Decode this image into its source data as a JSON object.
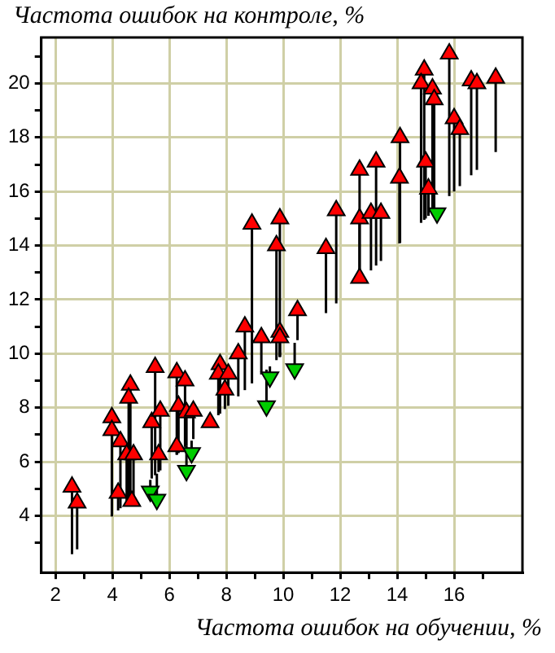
{
  "chart_data": {
    "type": "scatter",
    "xlabel": "Частота ошибок на обучении, %",
    "ylabel": "Частота ошибок на контроле, %",
    "xlim": [
      1.5,
      18.4
    ],
    "ylim": [
      1.9,
      21.7
    ],
    "xticks": [
      2,
      {
        "value": 3,
        "label": null
      },
      4,
      {
        "value": 5,
        "label": null
      },
      6,
      {
        "value": 7,
        "label": null
      },
      8,
      {
        "value": 9,
        "label": null
      },
      10,
      {
        "value": 11,
        "label": null
      },
      12,
      {
        "value": 13,
        "label": null
      },
      14,
      {
        "value": 15,
        "label": null
      },
      16,
      {
        "value": 17,
        "label": null
      }
    ],
    "yticks": [
      {
        "value": 3,
        "label": null
      },
      4,
      {
        "value": 5,
        "label": null
      },
      6,
      {
        "value": 7,
        "label": null
      },
      8,
      {
        "value": 9,
        "label": null
      },
      10,
      {
        "value": 11,
        "label": null
      },
      12,
      {
        "value": 13,
        "label": null
      },
      14,
      {
        "value": 15,
        "label": null
      },
      16,
      {
        "value": 17,
        "label": null
      },
      18,
      {
        "value": 19,
        "label": null
      },
      20,
      {
        "value": 21,
        "label": null
      }
    ],
    "grid": true,
    "legend": false,
    "marker": "triangle",
    "series": [
      {
        "color": "#ff0000",
        "x": [
          2.58,
          2.76,
          3.98,
          3.98,
          4.2,
          4.28,
          4.63,
          4.57,
          4.5,
          4.74,
          4.68,
          5.5,
          5.38,
          5.68,
          5.62,
          6.26,
          6.55,
          6.32,
          6.6,
          6.84,
          6.26,
          7.43,
          7.78,
          7.72,
          8.07,
          7.95,
          8.42,
          8.65,
          9.23,
          9.88,
          9.88,
          10.5,
          8.9,
          9.88,
          9.76,
          11.5,
          11.86,
          12.68,
          12.68,
          12.68,
          13.26,
          13.08,
          13.43,
          14.1,
          14.08,
          14.95,
          14.84,
          15.24,
          15.3,
          15.0,
          15.1,
          15.83,
          16.0,
          16.2,
          16.6,
          16.8,
          17.46
        ],
        "values": [
          5.07,
          4.48,
          7.64,
          7.16,
          4.84,
          6.75,
          8.84,
          8.36,
          6.27,
          6.27,
          4.54,
          9.5,
          7.46,
          7.88,
          6.27,
          9.3,
          9.0,
          8.06,
          7.82,
          7.88,
          6.57,
          7.46,
          9.6,
          9.25,
          9.25,
          8.66,
          10.0,
          11.0,
          10.6,
          10.8,
          10.6,
          11.6,
          14.8,
          15.0,
          14.0,
          13.9,
          15.3,
          16.8,
          15.0,
          12.8,
          17.1,
          15.2,
          15.2,
          18.0,
          16.5,
          20.5,
          20.0,
          19.8,
          19.4,
          17.1,
          16.1,
          21.1,
          18.7,
          18.3,
          20.1,
          20.0,
          20.2
        ],
        "errors": [
          [
            2.58,
            5.07
          ],
          [
            2.76,
            4.48
          ],
          [
            3.98,
            7.64
          ],
          [
            3.98,
            7.16
          ],
          [
            4.2,
            4.84
          ],
          [
            4.28,
            6.75
          ],
          [
            4.63,
            8.84
          ],
          [
            4.57,
            8.36
          ],
          [
            4.5,
            6.27
          ],
          [
            4.74,
            6.27
          ],
          null,
          [
            5.5,
            9.5
          ],
          [
            5.38,
            7.46
          ],
          [
            5.68,
            7.88
          ],
          [
            5.62,
            6.27
          ],
          [
            6.26,
            9.3
          ],
          [
            6.55,
            9.0
          ],
          [
            6.32,
            8.06
          ],
          [
            6.6,
            7.82
          ],
          [
            6.84,
            7.88
          ],
          [
            6.26,
            6.57
          ],
          null,
          [
            7.78,
            9.6
          ],
          [
            7.72,
            9.25
          ],
          [
            8.07,
            9.25
          ],
          [
            7.95,
            8.66
          ],
          [
            8.42,
            10.0
          ],
          [
            8.65,
            11.0
          ],
          [
            9.23,
            10.6
          ],
          [
            9.88,
            10.8
          ],
          [
            9.88,
            10.6
          ],
          [
            10.5,
            11.6
          ],
          [
            8.9,
            14.8
          ],
          [
            9.88,
            15.0
          ],
          [
            9.76,
            14.0
          ],
          [
            11.5,
            13.9
          ],
          [
            11.86,
            15.3
          ],
          [
            12.68,
            16.8
          ],
          [
            12.68,
            15.0
          ],
          [
            12.68,
            12.8
          ],
          [
            13.26,
            17.1
          ],
          [
            13.08,
            15.2
          ],
          [
            13.43,
            15.2
          ],
          [
            14.1,
            18.0
          ],
          [
            14.08,
            16.5
          ],
          [
            14.95,
            20.5
          ],
          [
            14.84,
            20.0
          ],
          [
            15.24,
            19.8
          ],
          [
            15.3,
            19.4
          ],
          [
            15.0,
            17.1
          ],
          [
            15.1,
            16.1
          ],
          [
            15.83,
            21.1
          ],
          [
            16.0,
            18.7
          ],
          [
            16.2,
            18.3
          ],
          [
            16.6,
            20.1
          ],
          [
            16.8,
            20.0
          ],
          [
            17.46,
            20.2
          ]
        ]
      },
      {
        "color": "#00cc00",
        "x": [
          5.33,
          5.56,
          6.78,
          6.6,
          9.53,
          9.41,
          10.4,
          15.4
        ],
        "values": [
          4.9,
          4.6,
          6.33,
          5.67,
          9.13,
          8.06,
          9.43,
          15.2
        ],
        "errors": [
          [
            4.9,
            5.33
          ],
          [
            4.6,
            5.56
          ],
          [
            6.33,
            6.78
          ],
          [
            5.67,
            6.6
          ],
          [
            9.13,
            9.53
          ],
          [
            8.06,
            9.41
          ],
          [
            9.43,
            10.4
          ],
          [
            15.2,
            15.4
          ]
        ]
      }
    ]
  }
}
